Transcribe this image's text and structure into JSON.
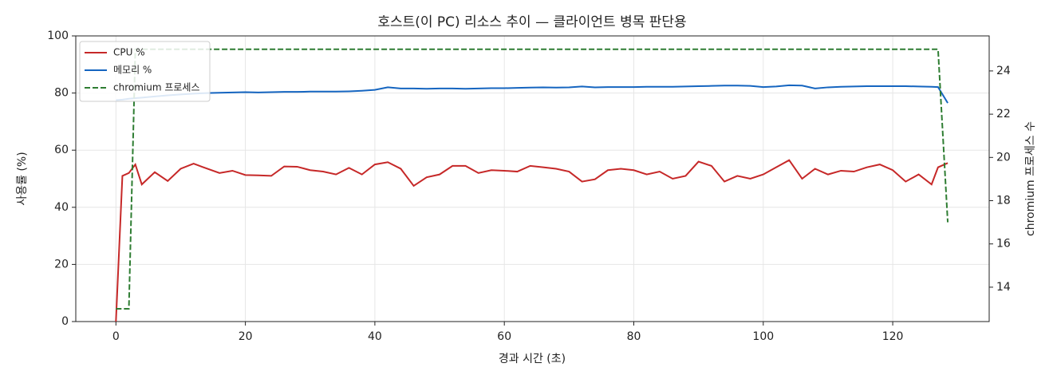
{
  "chart_data": {
    "type": "line",
    "title": "호스트(이 PC) 리소스 추이 — 클라이언트 병목 판단용",
    "xlabel": "경과 시간 (초)",
    "ylabel": "사용률 (%)",
    "y2label": "chromium 프로세스 수",
    "x": [
      0,
      1,
      2,
      3,
      4,
      6,
      8,
      10,
      12,
      14,
      16,
      18,
      20,
      22,
      24,
      26,
      28,
      30,
      32,
      34,
      36,
      38,
      40,
      42,
      44,
      46,
      48,
      50,
      52,
      54,
      56,
      58,
      60,
      62,
      64,
      66,
      68,
      70,
      72,
      74,
      76,
      78,
      80,
      82,
      84,
      86,
      88,
      90,
      92,
      94,
      96,
      98,
      100,
      102,
      104,
      106,
      108,
      110,
      112,
      114,
      116,
      118,
      120,
      122,
      124,
      126,
      127,
      128.5
    ],
    "series": [
      {
        "name": "CPU %",
        "color": "#c62828",
        "linestyle": "solid",
        "values": [
          0,
          51,
          52,
          55,
          48,
          52.3,
          49.2,
          53.5,
          55.3,
          53.6,
          52,
          52.8,
          51.3,
          51.2,
          51,
          54.3,
          54.2,
          53,
          52.5,
          51.5,
          53.8,
          51.5,
          55,
          55.8,
          53.5,
          47.5,
          50.5,
          51.5,
          54.5,
          54.5,
          52,
          53,
          52.8,
          52.5,
          54.5,
          54,
          53.5,
          52.5,
          49,
          49.8,
          53,
          53.5,
          53,
          51.5,
          52.5,
          50,
          51,
          56,
          54.5,
          49,
          51,
          50,
          51.5,
          54,
          56.5,
          50,
          53.5,
          51.5,
          52.8,
          52.5,
          54,
          55,
          53,
          49,
          51.5,
          48,
          54,
          55.5
        ]
      },
      {
        "name": "메모리 %",
        "color": "#1565c0",
        "linestyle": "solid",
        "values": [
          77.5,
          77.7,
          78,
          78.2,
          78.4,
          78.8,
          79.2,
          79.5,
          79.8,
          80,
          80.1,
          80.2,
          80.3,
          80.2,
          80.3,
          80.4,
          80.4,
          80.5,
          80.5,
          80.5,
          80.6,
          80.8,
          81.1,
          82,
          81.6,
          81.6,
          81.5,
          81.6,
          81.6,
          81.5,
          81.6,
          81.7,
          81.7,
          81.8,
          81.9,
          82,
          81.9,
          82,
          82.3,
          82,
          82.1,
          82.1,
          82.1,
          82.2,
          82.2,
          82.2,
          82.3,
          82.4,
          82.5,
          82.6,
          82.6,
          82.5,
          82.1,
          82.3,
          82.7,
          82.6,
          81.6,
          82,
          82.2,
          82.3,
          82.4,
          82.4,
          82.4,
          82.4,
          82.3,
          82.2,
          82.1,
          76.5
        ]
      },
      {
        "name": "chromium 프로세스",
        "color": "#2e7d32",
        "linestyle": "dashed",
        "axis": "y2",
        "values": [
          13,
          13,
          13,
          25,
          25,
          25,
          25,
          25,
          25,
          25,
          25,
          25,
          25,
          25,
          25,
          25,
          25,
          25,
          25,
          25,
          25,
          25,
          25,
          25,
          25,
          25,
          25,
          25,
          25,
          25,
          25,
          25,
          25,
          25,
          25,
          25,
          25,
          25,
          25,
          25,
          25,
          25,
          25,
          25,
          25,
          25,
          25,
          25,
          25,
          25,
          25,
          25,
          25,
          25,
          25,
          25,
          25,
          25,
          25,
          25,
          25,
          25,
          25,
          25,
          25,
          25,
          25,
          17
        ]
      }
    ],
    "xlim": [
      -6.2,
      134.9
    ],
    "xticks": [
      0,
      20,
      40,
      60,
      80,
      100,
      120
    ],
    "ylim": [
      0,
      100
    ],
    "yticks": [
      0,
      20,
      40,
      60,
      80,
      100
    ],
    "y2lim": [
      12.41,
      25.62
    ],
    "y2ticks": [
      14,
      16,
      18,
      20,
      22,
      24
    ],
    "grid": true,
    "legend": "upper left"
  }
}
